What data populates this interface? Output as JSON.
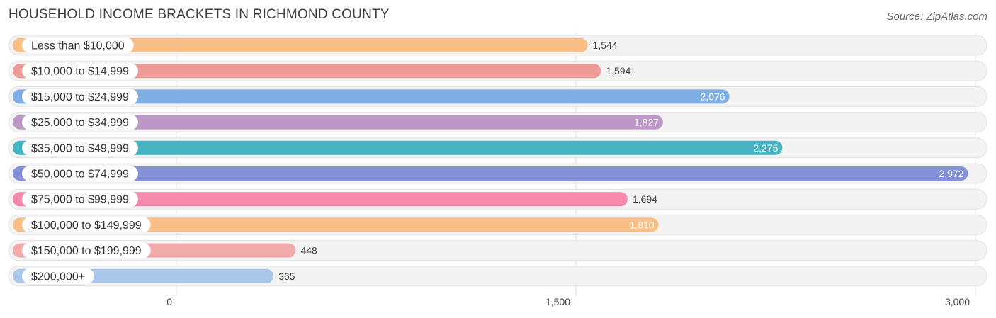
{
  "title": "HOUSEHOLD INCOME BRACKETS IN RICHMOND COUNTY",
  "source": "Source: ZipAtlas.com",
  "chart_data": {
    "type": "bar",
    "orientation": "horizontal",
    "title": "HOUSEHOLD INCOME BRACKETS IN RICHMOND COUNTY",
    "categories": [
      "Less than $10,000",
      "$10,000 to $14,999",
      "$15,000 to $24,999",
      "$25,000 to $34,999",
      "$35,000 to $49,999",
      "$50,000 to $74,999",
      "$75,000 to $99,999",
      "$100,000 to $149,999",
      "$150,000 to $199,999",
      "$200,000+"
    ],
    "values": [
      1544,
      1594,
      2076,
      1827,
      2275,
      2972,
      1694,
      1810,
      448,
      365
    ],
    "value_labels": [
      "1,544",
      "1,594",
      "2,076",
      "1,827",
      "2,275",
      "2,972",
      "1,694",
      "1,810",
      "448",
      "365"
    ],
    "colors": [
      "#f9bd86",
      "#ee9a96",
      "#7eaee3",
      "#bd97c7",
      "#45b3c1",
      "#8590db",
      "#f58aad",
      "#f9bd86",
      "#f2abab",
      "#a9c6eb"
    ],
    "xlim": [
      0,
      3000
    ],
    "xticks": [
      0,
      1500,
      3000
    ],
    "xtick_labels": [
      "0",
      "1,500",
      "3,000"
    ],
    "grid": true,
    "legend": "none"
  }
}
